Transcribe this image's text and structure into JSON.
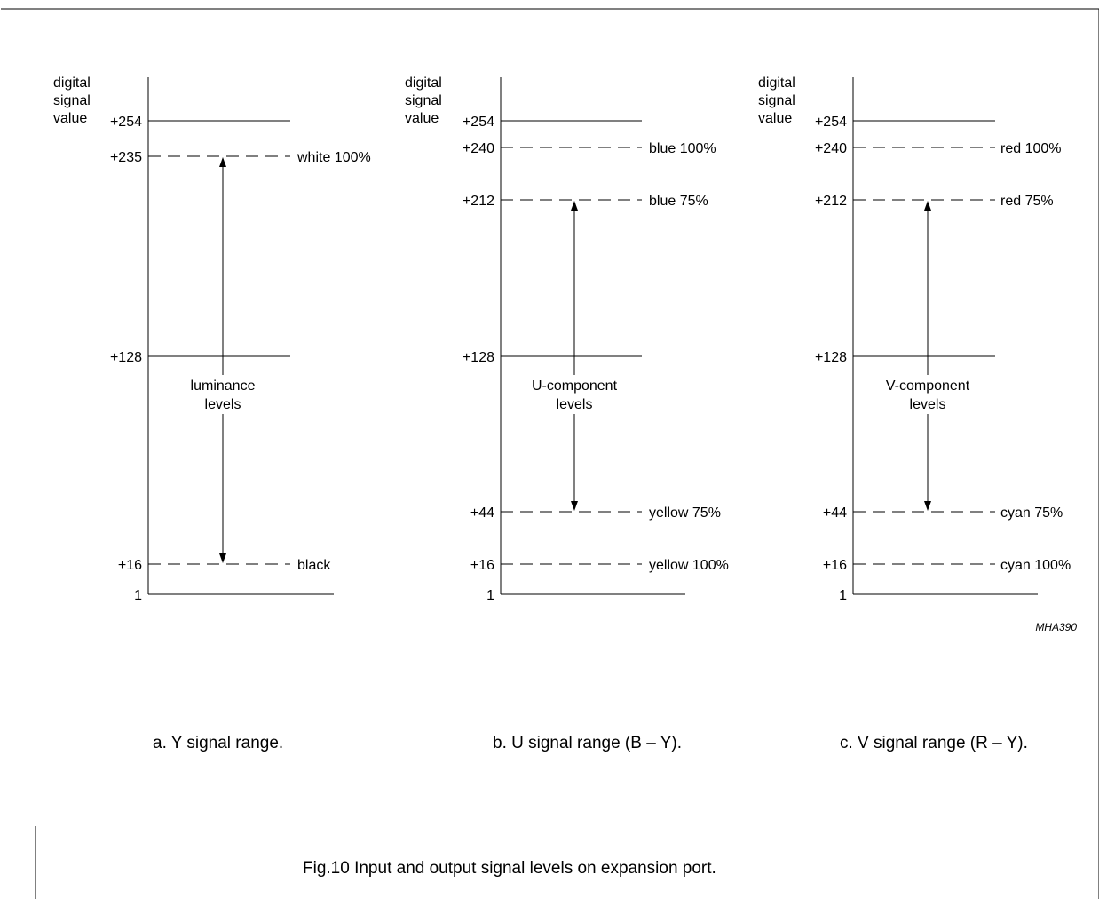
{
  "figure_id": "MHA390",
  "figure_caption": "Fig.10  Input and output signal levels on expansion port.",
  "axis_title_lines": [
    "digital",
    "signal",
    "value"
  ],
  "panels": [
    {
      "id": "y",
      "caption": "a.  Y signal range.",
      "center_lines": [
        "luminance",
        "levels"
      ],
      "levels": [
        {
          "value": "+254",
          "style": "solid",
          "label": ""
        },
        {
          "value": "+235",
          "style": "dashed",
          "label": "white 100%"
        },
        {
          "value": "+128",
          "style": "solid",
          "label": ""
        },
        {
          "value": "+16",
          "style": "dashed",
          "label": "black"
        },
        {
          "value": "1",
          "style": "base",
          "label": ""
        }
      ],
      "arrow": {
        "from": "+235",
        "to": "+16"
      }
    },
    {
      "id": "u",
      "caption": "b.  U signal range (B – Y).",
      "center_lines": [
        "U-component",
        "levels"
      ],
      "levels": [
        {
          "value": "+254",
          "style": "solid",
          "label": ""
        },
        {
          "value": "+240",
          "style": "dashed",
          "label": "blue 100%"
        },
        {
          "value": "+212",
          "style": "dashed",
          "label": "blue 75%"
        },
        {
          "value": "+128",
          "style": "solid",
          "label": ""
        },
        {
          "value": "+44",
          "style": "dashed",
          "label": "yellow 75%"
        },
        {
          "value": "+16",
          "style": "dashed",
          "label": "yellow 100%"
        },
        {
          "value": "1",
          "style": "base",
          "label": ""
        }
      ],
      "arrow": {
        "from": "+212",
        "to": "+44"
      }
    },
    {
      "id": "v",
      "caption": "c.  V signal range (R – Y).",
      "center_lines": [
        "V-component",
        "levels"
      ],
      "levels": [
        {
          "value": "+254",
          "style": "solid",
          "label": ""
        },
        {
          "value": "+240",
          "style": "dashed",
          "label": "red 100%"
        },
        {
          "value": "+212",
          "style": "dashed",
          "label": "red 75%"
        },
        {
          "value": "+128",
          "style": "solid",
          "label": ""
        },
        {
          "value": "+44",
          "style": "dashed",
          "label": "cyan 75%"
        },
        {
          "value": "+16",
          "style": "dashed",
          "label": "cyan 100%"
        },
        {
          "value": "1",
          "style": "base",
          "label": ""
        }
      ],
      "arrow": {
        "from": "+212",
        "to": "+44"
      }
    }
  ]
}
